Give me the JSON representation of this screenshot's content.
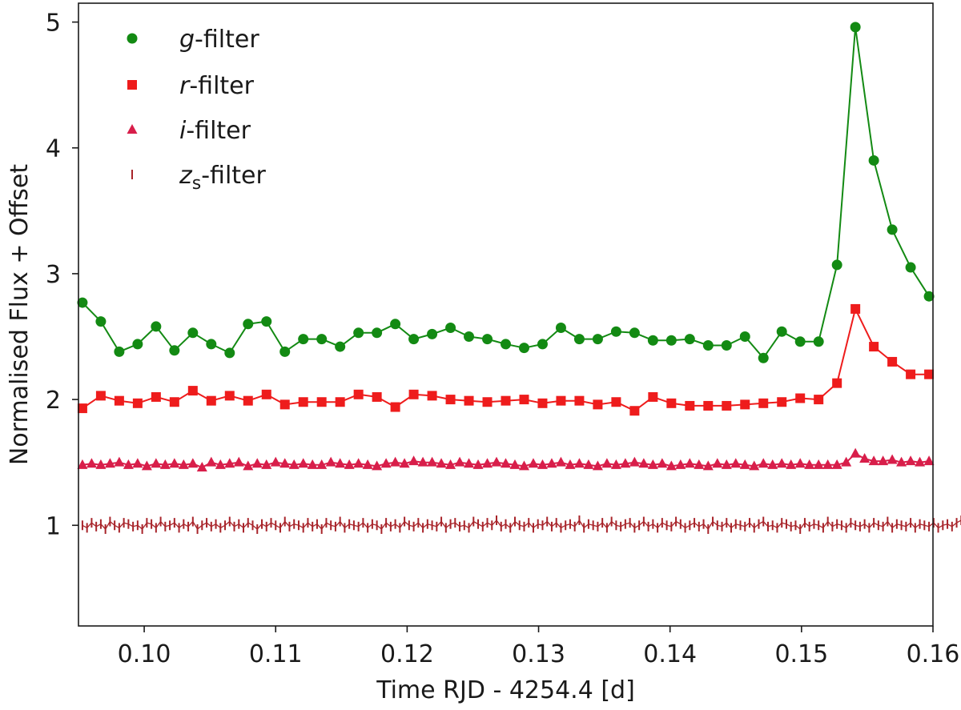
{
  "chart_data": {
    "type": "line",
    "xlabel": "Time RJD - 4254.4 [d]",
    "ylabel": "Normalised Flux + Offset",
    "xlim": [
      0.095,
      0.16
    ],
    "ylim": [
      0.2,
      5.15
    ],
    "xticks": [
      "0.10",
      "0.11",
      "0.12",
      "0.13",
      "0.14",
      "0.15",
      "0.16"
    ],
    "yticks": [
      "1",
      "2",
      "3",
      "4",
      "5"
    ],
    "legend_position": "top-left",
    "grid": false,
    "series": [
      {
        "name": "g-filter",
        "name_parts": [
          "g",
          "-filter"
        ],
        "marker": "circle",
        "color": "#138a13",
        "x": [
          0.0953,
          0.0967,
          0.0981,
          0.0995,
          0.1009,
          0.1023,
          0.1037,
          0.1051,
          0.1065,
          0.1079,
          0.1093,
          0.1107,
          0.1121,
          0.1135,
          0.1149,
          0.1163,
          0.1177,
          0.1191,
          0.1205,
          0.1219,
          0.1233,
          0.1247,
          0.1261,
          0.1275,
          0.1289,
          0.1303,
          0.1317,
          0.1331,
          0.1345,
          0.1359,
          0.1373,
          0.1387,
          0.1401,
          0.1415,
          0.1429,
          0.1443,
          0.1457,
          0.1471,
          0.1485,
          0.1499,
          0.1513,
          0.1527,
          0.1541,
          0.1555,
          0.1569,
          0.1583,
          0.1597
        ],
        "y": [
          2.77,
          2.62,
          2.38,
          2.44,
          2.58,
          2.39,
          2.53,
          2.44,
          2.37,
          2.6,
          2.62,
          2.38,
          2.48,
          2.48,
          2.42,
          2.53,
          2.53,
          2.6,
          2.48,
          2.52,
          2.57,
          2.5,
          2.48,
          2.44,
          2.41,
          2.44,
          2.57,
          2.48,
          2.48,
          2.54,
          2.53,
          2.47,
          2.47,
          2.48,
          2.43,
          2.43,
          2.5,
          2.33,
          2.54,
          2.46,
          2.46,
          3.07,
          4.96,
          3.9,
          3.35,
          3.05,
          2.82
        ]
      },
      {
        "name": "r-filter",
        "name_parts": [
          "r",
          "-filter"
        ],
        "marker": "square",
        "color": "#ee1c1c",
        "x": [
          0.0953,
          0.0967,
          0.0981,
          0.0995,
          0.1009,
          0.1023,
          0.1037,
          0.1051,
          0.1065,
          0.1079,
          0.1093,
          0.1107,
          0.1121,
          0.1135,
          0.1149,
          0.1163,
          0.1177,
          0.1191,
          0.1205,
          0.1219,
          0.1233,
          0.1247,
          0.1261,
          0.1275,
          0.1289,
          0.1303,
          0.1317,
          0.1331,
          0.1345,
          0.1359,
          0.1373,
          0.1387,
          0.1401,
          0.1415,
          0.1429,
          0.1443,
          0.1457,
          0.1471,
          0.1485,
          0.1499,
          0.1513,
          0.1527,
          0.1541,
          0.1555,
          0.1569,
          0.1583,
          0.1597
        ],
        "y": [
          1.93,
          2.03,
          1.99,
          1.97,
          2.02,
          1.98,
          2.07,
          1.99,
          2.03,
          1.99,
          2.04,
          1.96,
          1.98,
          1.98,
          1.98,
          2.04,
          2.02,
          1.94,
          2.04,
          2.03,
          2.0,
          1.99,
          1.98,
          1.99,
          2.0,
          1.97,
          1.99,
          1.99,
          1.96,
          1.98,
          1.91,
          2.02,
          1.97,
          1.95,
          1.95,
          1.95,
          1.96,
          1.97,
          1.98,
          2.01,
          2.0,
          2.13,
          2.72,
          2.42,
          2.3,
          2.2,
          2.2
        ]
      },
      {
        "name": "i-filter",
        "name_parts": [
          "i",
          "-filter"
        ],
        "marker": "triangle",
        "color": "#d81e4a",
        "x": [
          0.0953,
          0.096,
          0.0967,
          0.0974,
          0.0981,
          0.0988,
          0.0995,
          0.1002,
          0.1009,
          0.1016,
          0.1023,
          0.103,
          0.1037,
          0.1044,
          0.1051,
          0.1058,
          0.1065,
          0.1072,
          0.1079,
          0.1086,
          0.1093,
          0.11,
          0.1107,
          0.1114,
          0.1121,
          0.1128,
          0.1135,
          0.1142,
          0.1149,
          0.1156,
          0.1163,
          0.117,
          0.1177,
          0.1184,
          0.1191,
          0.1198,
          0.1205,
          0.1212,
          0.1219,
          0.1226,
          0.1233,
          0.124,
          0.1247,
          0.1254,
          0.1261,
          0.1268,
          0.1275,
          0.1282,
          0.1289,
          0.1296,
          0.1303,
          0.131,
          0.1317,
          0.1324,
          0.1331,
          0.1338,
          0.1345,
          0.1352,
          0.1359,
          0.1366,
          0.1373,
          0.138,
          0.1387,
          0.1394,
          0.1401,
          0.1408,
          0.1415,
          0.1422,
          0.1429,
          0.1436,
          0.1443,
          0.145,
          0.1457,
          0.1464,
          0.1471,
          0.1478,
          0.1485,
          0.1492,
          0.1499,
          0.1506,
          0.1513,
          0.152,
          0.1527,
          0.1534,
          0.1541,
          0.1548,
          0.1555,
          0.1562,
          0.1569,
          0.1576,
          0.1583,
          0.159,
          0.1597
        ],
        "y": [
          1.48,
          1.49,
          1.48,
          1.49,
          1.5,
          1.48,
          1.49,
          1.47,
          1.49,
          1.48,
          1.49,
          1.48,
          1.49,
          1.46,
          1.5,
          1.48,
          1.49,
          1.5,
          1.47,
          1.49,
          1.48,
          1.5,
          1.49,
          1.48,
          1.49,
          1.48,
          1.48,
          1.5,
          1.49,
          1.48,
          1.49,
          1.48,
          1.47,
          1.49,
          1.5,
          1.49,
          1.51,
          1.5,
          1.5,
          1.49,
          1.48,
          1.5,
          1.49,
          1.48,
          1.49,
          1.5,
          1.49,
          1.48,
          1.47,
          1.49,
          1.48,
          1.49,
          1.5,
          1.48,
          1.49,
          1.48,
          1.47,
          1.49,
          1.48,
          1.49,
          1.5,
          1.49,
          1.48,
          1.49,
          1.47,
          1.48,
          1.49,
          1.48,
          1.47,
          1.49,
          1.48,
          1.49,
          1.48,
          1.47,
          1.49,
          1.48,
          1.49,
          1.48,
          1.49,
          1.48,
          1.48,
          1.48,
          1.48,
          1.5,
          1.57,
          1.53,
          1.51,
          1.51,
          1.52,
          1.5,
          1.51,
          1.5,
          1.51
        ]
      },
      {
        "name": "zs-filter",
        "name_parts": [
          "z",
          "s",
          "-filter"
        ],
        "marker": "vline",
        "color": "#a8242a",
        "x_start": 0.0953,
        "x_step": 0.00035,
        "y": [
          1.0,
          0.98,
          1.02,
          0.99,
          1.01,
          0.97,
          1.03,
          1.0,
          0.98,
          1.02,
          1.01,
          0.99,
          1.0,
          0.97,
          1.02,
          1.01,
          0.98,
          1.03,
          0.99,
          1.0,
          1.02,
          0.98,
          1.01,
          0.99,
          1.03,
          0.97,
          1.0,
          1.02,
          0.99,
          1.01,
          0.98,
          1.0,
          1.03,
          0.99,
          1.01,
          0.98,
          1.02,
          1.0,
          0.97,
          1.01,
          0.99,
          1.02,
          1.0,
          0.98,
          1.03,
          0.99,
          1.01,
          1.0,
          0.98,
          1.02,
          0.99,
          1.01,
          0.97,
          1.02,
          1.0,
          0.99,
          1.03,
          0.98,
          1.01,
          1.0,
          0.99,
          1.02,
          0.98,
          1.01,
          1.0,
          0.97,
          1.02,
          0.99,
          1.01,
          0.98,
          1.03,
          1.0,
          0.99,
          1.02,
          0.98,
          1.01,
          1.0,
          0.99,
          1.03,
          0.98,
          1.01,
          1.02,
          0.99,
          1.0,
          0.98,
          1.03,
          1.01,
          0.99,
          1.02,
          1.0,
          1.04,
          0.99,
          1.01,
          0.98,
          1.03,
          1.0,
          0.99,
          1.02,
          0.98,
          1.01,
          1.0,
          1.03,
          0.99,
          1.02,
          0.98,
          1.0,
          1.01,
          0.99,
          1.04,
          0.98,
          1.01,
          1.0,
          0.99,
          1.02,
          0.98,
          1.03,
          1.0,
          0.99,
          1.01,
          1.02,
          0.98,
          1.0,
          1.03,
          0.99,
          1.01,
          0.98,
          1.02,
          1.0,
          0.99,
          1.03,
          1.01,
          0.98,
          1.0,
          1.02,
          0.99,
          1.01,
          0.97,
          1.03,
          1.0,
          0.99,
          1.02,
          0.98,
          1.01,
          1.0,
          0.99,
          1.02,
          0.98,
          1.01,
          1.03,
          0.99,
          1.0,
          0.98,
          1.02,
          1.01,
          0.99,
          1.0,
          0.97,
          1.02,
          0.99,
          1.01,
          1.0,
          0.98,
          1.03,
          0.99,
          1.01,
          1.0,
          0.98,
          1.02,
          1.0,
          0.99,
          1.01,
          0.98,
          1.02,
          1.0,
          0.99,
          1.03,
          0.98,
          1.01,
          1.0,
          0.99,
          1.02,
          0.98,
          1.01,
          1.0,
          0.99,
          1.02,
          0.98,
          1.0,
          1.01,
          0.99,
          1.02,
          1.04,
          1.01,
          1.03,
          1.02,
          0.99,
          1.03,
          1.01,
          1.0,
          1.02,
          0.99,
          1.01,
          1.0,
          0.98,
          1.02,
          1.0,
          0.99,
          1.01,
          0.98,
          1.02,
          1.0
        ]
      }
    ]
  }
}
